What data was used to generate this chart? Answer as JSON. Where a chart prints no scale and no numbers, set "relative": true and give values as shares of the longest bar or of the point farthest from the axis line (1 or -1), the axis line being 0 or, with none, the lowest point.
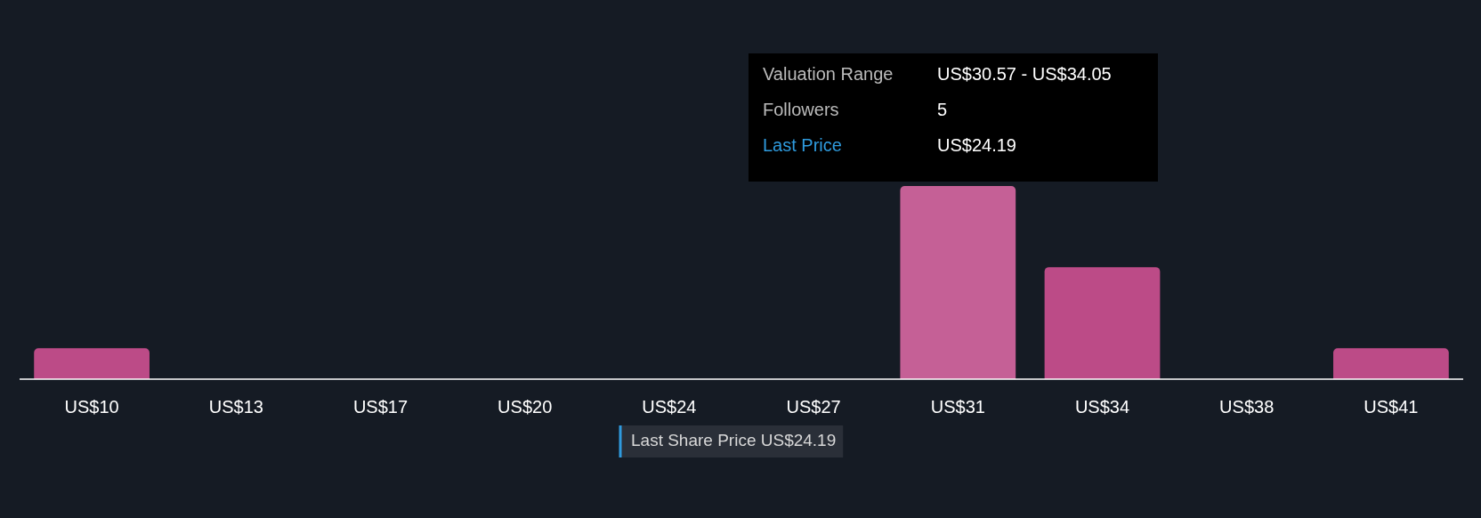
{
  "chart_data": {
    "type": "bar",
    "relative": true,
    "categories": [
      "US$10",
      "US$13",
      "US$17",
      "US$20",
      "US$24",
      "US$27",
      "US$31",
      "US$34",
      "US$38",
      "US$41"
    ],
    "values": [
      0.16,
      0,
      0,
      0,
      0,
      0,
      1,
      0.58,
      0,
      0.16
    ],
    "colors": [
      "#bc4b87",
      "#bc4b87",
      "#bc4b87",
      "#bc4b87",
      "#bc4b87",
      "#bc4b87",
      "#c56096",
      "#bc4b87",
      "#bc4b87",
      "#bc4b87"
    ],
    "annotations": [
      "Valuation Range",
      "US$30.57 - US$34.05",
      "Followers",
      "5",
      "Last Price",
      "US$24.19",
      "Last Share Price US$24.19"
    ]
  }
}
